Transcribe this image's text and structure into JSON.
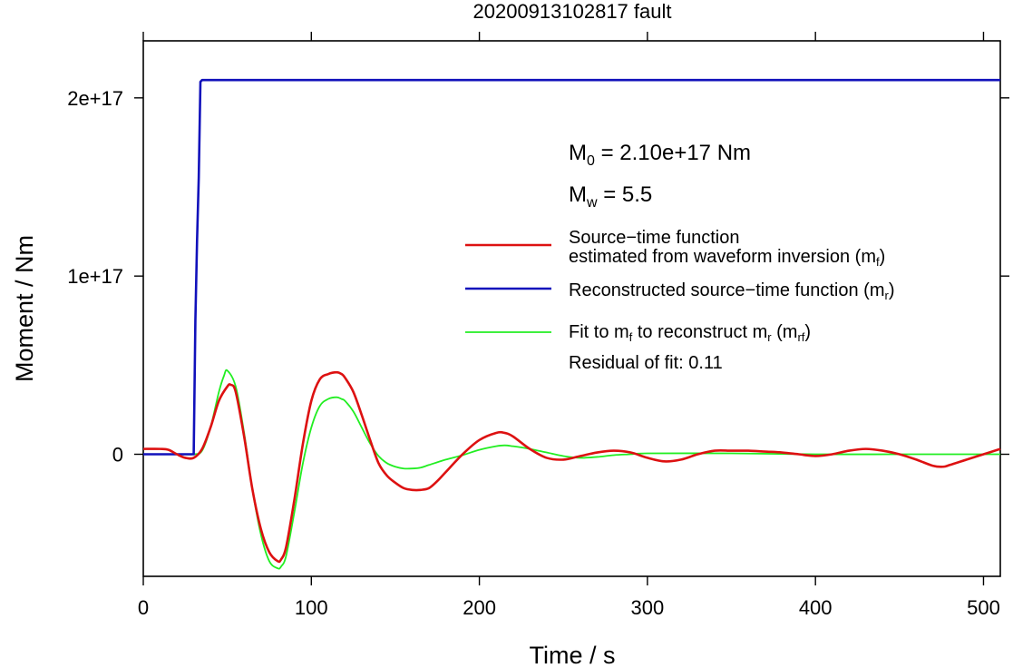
{
  "chart_data": {
    "type": "line",
    "title": "20200913102817 fault",
    "xlabel": "Time / s",
    "ylabel": "Moment / Nm",
    "xlim": [
      0,
      510
    ],
    "ylim": [
      -6.85e+16,
      2.32e+17
    ],
    "x_ticks": [
      0,
      100,
      200,
      300,
      400,
      500
    ],
    "x_tick_labels": [
      "0",
      "100",
      "200",
      "300",
      "400",
      "500"
    ],
    "y_ticks": [
      0,
      1e+17,
      2e+17
    ],
    "y_tick_labels": [
      "0",
      "1e+17",
      "2e+17"
    ],
    "grid": false,
    "colors": {
      "mf": "#dd1111",
      "mr": "#1111bb",
      "mrf": "#22ee22"
    },
    "annotations": {
      "m0_main": "M",
      "m0_sub": "0",
      "m0_rest": " = 2.10e+17 Nm",
      "mw_main": "M",
      "mw_sub": "w",
      "mw_rest": " = 5.5",
      "residual": "Residual of fit: 0.11"
    },
    "legend": {
      "position": "right",
      "mf_line1": "Source−time function",
      "mf_line2_pre": "estimated from waveform inversion (m",
      "mf_line2_sub": "f",
      "mf_line2_post": ")",
      "mr_pre": "Reconstructed source−time function (m",
      "mr_sub": "r",
      "mr_post": ")",
      "mrf_a": "Fit to m",
      "mrf_a_sub": "f",
      "mrf_b": " to reconstruct m",
      "mrf_b_sub": "r",
      "mrf_c": " (m",
      "mrf_c_sub": "rf",
      "mrf_d": ")"
    },
    "series": [
      {
        "name": "Source−time function estimated from waveform inversion (mf)",
        "key": "mf",
        "x": [
          0,
          10,
          15,
          20,
          25,
          30,
          35,
          40,
          45,
          50,
          52,
          55,
          60,
          65,
          70,
          75,
          80,
          82,
          85,
          90,
          95,
          100,
          105,
          110,
          115,
          118,
          120,
          125,
          130,
          135,
          140,
          145,
          150,
          155,
          160,
          165,
          170,
          175,
          180,
          190,
          200,
          210,
          215,
          220,
          230,
          240,
          250,
          260,
          270,
          280,
          290,
          300,
          310,
          320,
          330,
          340,
          350,
          360,
          370,
          380,
          390,
          400,
          410,
          420,
          430,
          440,
          450,
          460,
          470,
          476,
          480,
          490,
          500,
          510
        ],
        "y": [
          3000000000000000.0,
          3000000000000000.0,
          2500000000000000.0,
          0.0,
          -2000000000000000.0,
          -2000000000000000.0,
          3000000000000000.0,
          1.5e+16,
          3e+16,
          3.8e+16,
          3.9e+16,
          3.5e+16,
          1e+16,
          -2e+16,
          -4.2e+16,
          -5.5e+16,
          -6e+16,
          -5.9e+16,
          -5.2e+16,
          -2.5e+16,
          6000000000000000.0,
          3e+16,
          4.2e+16,
          4.5e+16,
          4.6e+16,
          4.5e+16,
          4.3e+16,
          3.5e+16,
          2.2e+16,
          8000000000000000.0,
          -5000000000000000.0,
          -1.2e+16,
          -1.6e+16,
          -1.9e+16,
          -2e+16,
          -2e+16,
          -1.9e+16,
          -1.5e+16,
          -1e+16,
          0.0,
          8000000000000000.0,
          1.2e+16,
          1.2e+16,
          1e+16,
          3000000000000000.0,
          -2000000000000000.0,
          -3000000000000000.0,
          -1000000000000000.0,
          1000000000000000.0,
          2000000000000000.0,
          1000000000000000.0,
          -2000000000000000.0,
          -4000000000000000.0,
          -3000000000000000.0,
          0.0,
          2000000000000000.0,
          2000000000000000.0,
          2000000000000000.0,
          1500000000000000.0,
          1000000000000000.0,
          0.0,
          -1000000000000000.0,
          0.0,
          2000000000000000.0,
          3000000000000000.0,
          2000000000000000.0,
          0.0,
          -3000000000000000.0,
          -6500000000000000.0,
          -7000000000000000.0,
          -6000000000000000.0,
          -3000000000000000.0,
          0.0,
          3000000000000000.0
        ]
      },
      {
        "name": "Reconstructed source−time function (mr)",
        "key": "mr",
        "x": [
          0,
          28,
          30,
          31,
          32,
          33,
          34,
          35,
          40,
          100,
          200,
          300,
          400,
          500,
          510
        ],
        "y": [
          0,
          0,
          0,
          7.5e+16,
          1.2e+17,
          1.55e+17,
          2.09e+17,
          2.1e+17,
          2.1e+17,
          2.1e+17,
          2.1e+17,
          2.1e+17,
          2.1e+17,
          2.1e+17,
          2.1e+17
        ]
      },
      {
        "name": "Fit to mf to reconstruct mr (mrf)",
        "key": "mrf",
        "x": [
          0,
          20,
          30,
          35,
          40,
          45,
          48,
          50,
          55,
          60,
          65,
          70,
          75,
          80,
          82,
          85,
          90,
          95,
          100,
          105,
          110,
          115,
          118,
          120,
          125,
          130,
          135,
          140,
          145,
          150,
          155,
          160,
          165,
          170,
          180,
          190,
          200,
          210,
          215,
          220,
          230,
          240,
          250,
          260,
          270,
          280,
          290,
          300,
          350,
          400,
          450,
          500,
          510
        ],
        "y": [
          0,
          0,
          0,
          2000000000000000.0,
          1.5e+16,
          3.5e+16,
          4.4e+16,
          4.7e+16,
          3.8e+16,
          1.2e+16,
          -2e+16,
          -4.5e+16,
          -6e+16,
          -6.4e+16,
          -6.3e+16,
          -5.7e+16,
          -3.2e+16,
          -5000000000000000.0,
          1.5e+16,
          2.7e+16,
          3.1e+16,
          3.2e+16,
          3.1e+16,
          3e+16,
          2.4e+16,
          1.5e+16,
          6000000000000000.0,
          -1000000000000000.0,
          -5000000000000000.0,
          -7000000000000000.0,
          -8000000000000000.0,
          -8000000000000000.0,
          -7500000000000000.0,
          -6000000000000000.0,
          -3000000000000000.0,
          -500000000000000.0,
          2500000000000000.0,
          4500000000000000.0,
          5000000000000000.0,
          4500000000000000.0,
          3000000000000000.0,
          1000000000000000.0,
          -1000000000000000.0,
          -2000000000000000.0,
          -1500000000000000.0,
          -500000000000000.0,
          0.0,
          500000000000000.0,
          500000000000000.0,
          0.0,
          0.0,
          0.0,
          0.0
        ]
      }
    ]
  }
}
